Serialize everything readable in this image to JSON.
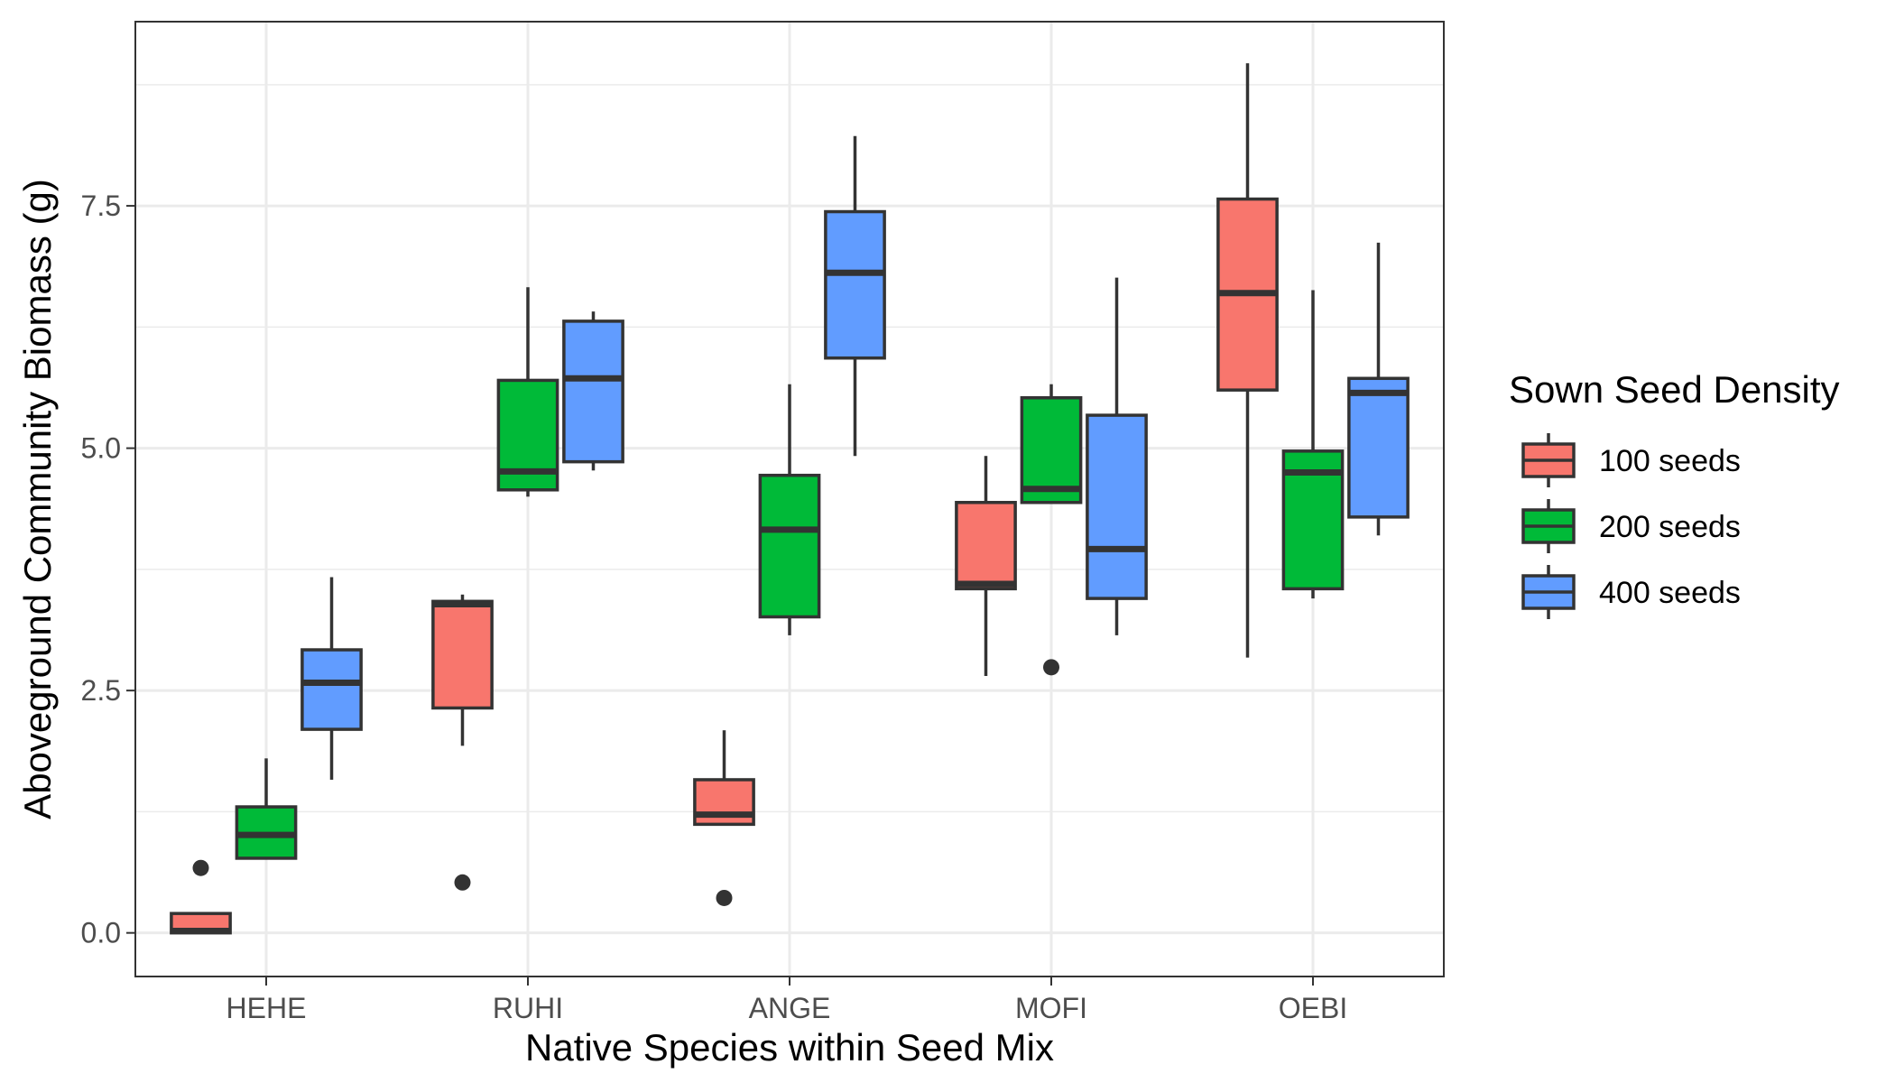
{
  "chart_data": {
    "type": "boxplot",
    "xlabel": "Native Species within Seed Mix",
    "ylabel": "Aboveground Community Biomass (g)",
    "categories": [
      "HEHE",
      "RUHI",
      "ANGE",
      "MOFI",
      "OEBI"
    ],
    "ylim": [
      -0.45,
      9.4
    ],
    "yticks": [
      0.0,
      2.5,
      5.0,
      7.5
    ],
    "ytick_labels": [
      "0.0",
      "2.5",
      "5.0",
      "7.5"
    ],
    "grid": true,
    "legend": {
      "title": "Sown Seed Density",
      "position": "right"
    },
    "series": [
      {
        "name": "100 seeds",
        "color": "#F8766D",
        "boxes": [
          {
            "category": "HEHE",
            "whisker_low": 0.0,
            "q1": 0.0,
            "median": 0.02,
            "q3": 0.2,
            "whisker_high": 0.2,
            "outliers": [
              0.67
            ]
          },
          {
            "category": "RUHI",
            "whisker_low": 1.93,
            "q1": 2.32,
            "median": 3.39,
            "q3": 3.42,
            "whisker_high": 3.49,
            "outliers": [
              0.52
            ]
          },
          {
            "category": "ANGE",
            "whisker_low": 1.12,
            "q1": 1.12,
            "median": 1.22,
            "q3": 1.58,
            "whisker_high": 2.09,
            "outliers": [
              0.36
            ]
          },
          {
            "category": "MOFI",
            "whisker_low": 2.65,
            "q1": 3.55,
            "median": 3.6,
            "q3": 4.44,
            "whisker_high": 4.92,
            "outliers": []
          },
          {
            "category": "OEBI",
            "whisker_low": 2.84,
            "q1": 5.6,
            "median": 6.6,
            "q3": 7.57,
            "whisker_high": 8.97,
            "outliers": []
          }
        ]
      },
      {
        "name": "200 seeds",
        "color": "#00BA38",
        "boxes": [
          {
            "category": "HEHE",
            "whisker_low": 0.77,
            "q1": 0.77,
            "median": 1.01,
            "q3": 1.3,
            "whisker_high": 1.8,
            "outliers": []
          },
          {
            "category": "RUHI",
            "whisker_low": 4.5,
            "q1": 4.57,
            "median": 4.76,
            "q3": 5.7,
            "whisker_high": 6.66,
            "outliers": []
          },
          {
            "category": "ANGE",
            "whisker_low": 3.07,
            "q1": 3.26,
            "median": 4.16,
            "q3": 4.72,
            "whisker_high": 5.66,
            "outliers": []
          },
          {
            "category": "MOFI",
            "whisker_low": 4.44,
            "q1": 4.44,
            "median": 4.58,
            "q3": 5.52,
            "whisker_high": 5.66,
            "outliers": [
              2.74
            ]
          },
          {
            "category": "OEBI",
            "whisker_low": 3.45,
            "q1": 3.55,
            "median": 4.75,
            "q3": 4.97,
            "whisker_high": 6.63,
            "outliers": []
          }
        ]
      },
      {
        "name": "400 seeds",
        "color": "#619CFF",
        "boxes": [
          {
            "category": "HEHE",
            "whisker_low": 1.58,
            "q1": 2.1,
            "median": 2.58,
            "q3": 2.92,
            "whisker_high": 3.67,
            "outliers": []
          },
          {
            "category": "RUHI",
            "whisker_low": 4.77,
            "q1": 4.86,
            "median": 5.72,
            "q3": 6.31,
            "whisker_high": 6.41,
            "outliers": []
          },
          {
            "category": "ANGE",
            "whisker_low": 4.92,
            "q1": 5.93,
            "median": 6.81,
            "q3": 7.44,
            "whisker_high": 8.22,
            "outliers": []
          },
          {
            "category": "MOFI",
            "whisker_low": 3.07,
            "q1": 3.45,
            "median": 3.96,
            "q3": 5.34,
            "whisker_high": 6.76,
            "outliers": []
          },
          {
            "category": "OEBI",
            "whisker_low": 4.1,
            "q1": 4.29,
            "median": 5.57,
            "q3": 5.72,
            "whisker_high": 7.12,
            "outliers": []
          }
        ]
      }
    ]
  }
}
